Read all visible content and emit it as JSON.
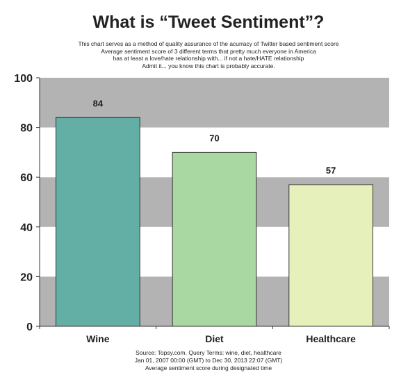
{
  "header": {
    "title": "What is “Tweet Sentiment”?",
    "subtitle_lines": [
      "This chart serves as a method of quality assurance of the acurracy of Twitter based sentiment score",
      "Average sentiment score of 3 different terms that pretty much everyone in America",
      "has at least a love/hate relationship with... if not a hate/HATE relationship",
      "Admit it... you know this chart is probably accurate."
    ]
  },
  "footer": {
    "source_lines": [
      "Source: Topsy.com. Query Terms: wine, diet, healthcare",
      "Jan 01, 2007 00:00 (GMT) to Dec 30, 2013 22:07 (GMT)",
      "Average sentiment score during designated time"
    ]
  },
  "chart_data": {
    "type": "bar",
    "categories": [
      "Wine",
      "Diet",
      "Healthcare"
    ],
    "values": [
      84,
      70,
      57
    ],
    "data_labels": [
      "84",
      "70",
      "57"
    ],
    "bar_colors": [
      "#63aea5",
      "#a9d8a2",
      "#e6f0bb"
    ],
    "bar_outline": "#333333",
    "band_colors": [
      "#b3b3b3",
      "#ffffff"
    ],
    "ylim": [
      0,
      100
    ],
    "yticks": [
      0,
      20,
      40,
      60,
      80,
      100
    ],
    "ytick_labels": [
      "0",
      "20",
      "40",
      "60",
      "80",
      "100"
    ],
    "xlabel": "",
    "ylabel": "",
    "grid": "alternating horizontal bands",
    "legend": "none"
  }
}
